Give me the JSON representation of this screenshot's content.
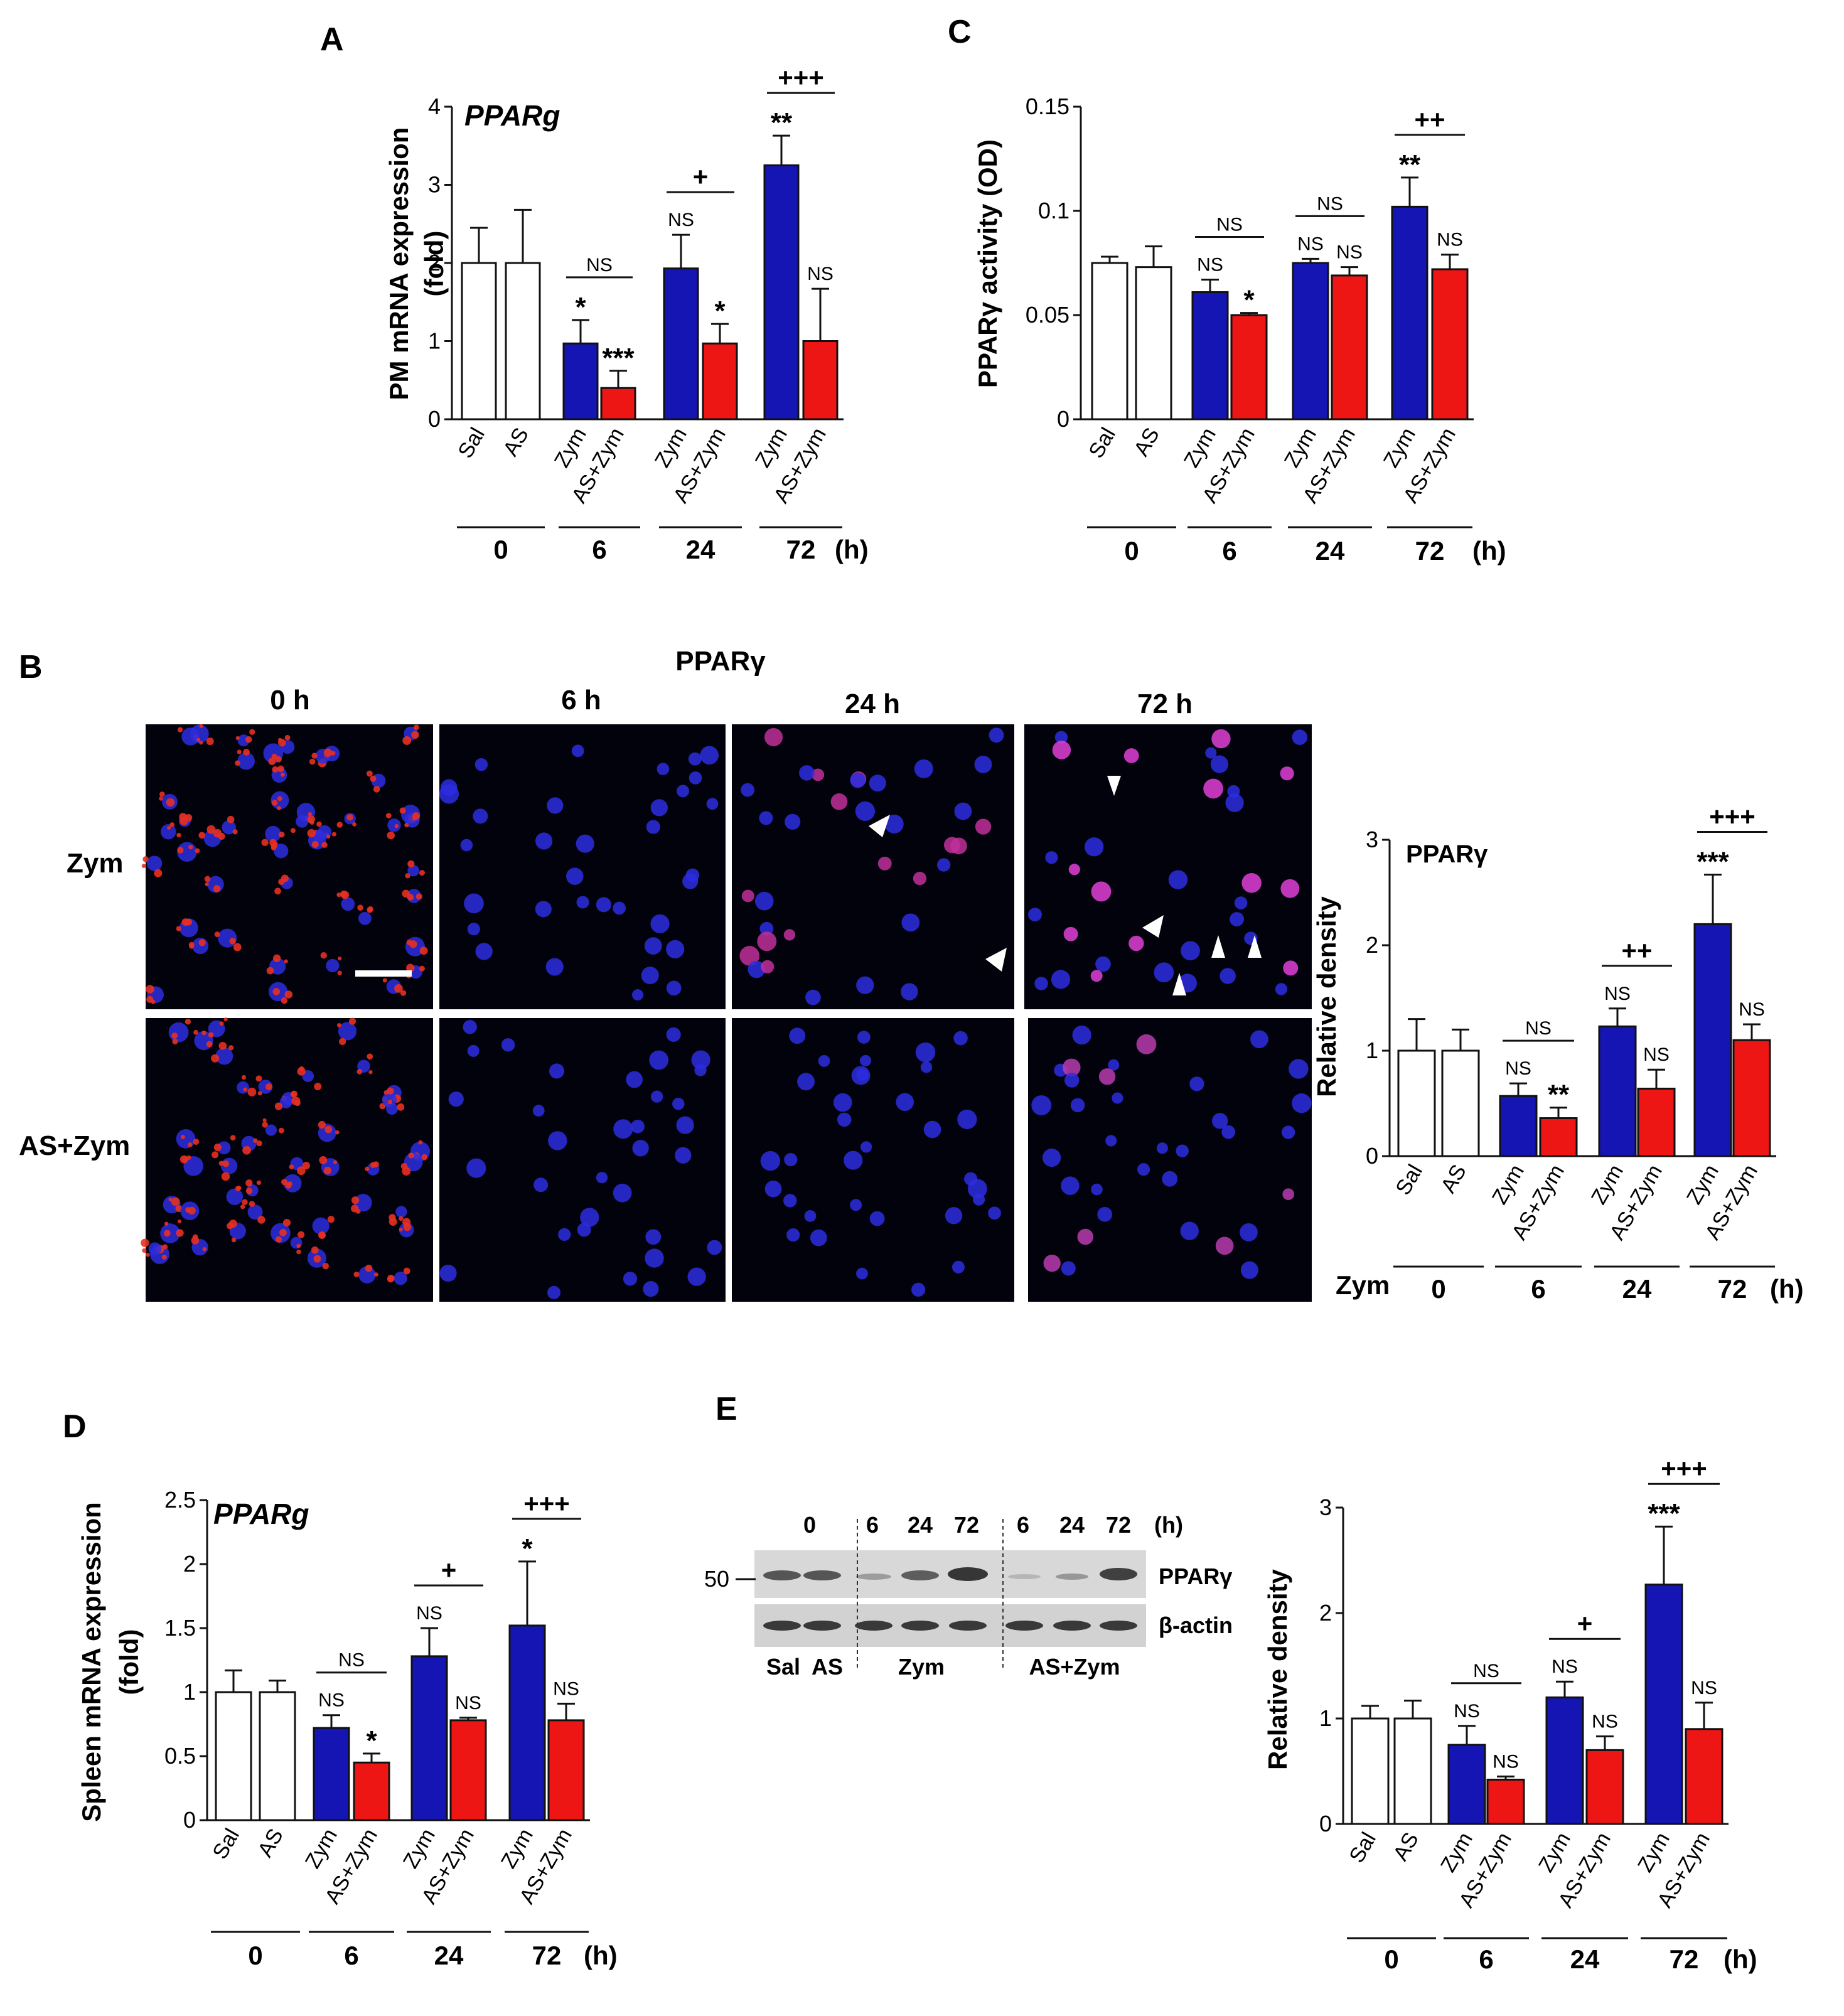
{
  "panels": {
    "A": "A",
    "B": "B",
    "C": "C",
    "D": "D",
    "E": "E"
  },
  "colors": {
    "sal": "#ffffff",
    "zym": "#1515b4",
    "aszym": "#ee1515",
    "line": "#111111"
  },
  "time_unit": "(h)",
  "time_labels": [
    "0",
    "6",
    "24",
    "72"
  ],
  "imaging": {
    "title": "PPARγ",
    "columns": [
      "0 h",
      "6 h",
      "24 h",
      "72 h"
    ],
    "rows": [
      "Zym",
      "AS+Zym"
    ],
    "zym_axis_label": "Zym"
  },
  "western": {
    "lanes_time": [
      "0",
      "6",
      "24",
      "72",
      "6",
      "24",
      "72",
      "(h)"
    ],
    "marker": "50",
    "bands": [
      "PPARγ",
      "β-actin"
    ],
    "groups": [
      "Sal",
      "AS",
      "Zym",
      "AS+Zym"
    ]
  },
  "chart_data": [
    {
      "id": "A",
      "type": "bar",
      "title": "PPARg",
      "ylabel": "PM  mRNA expression",
      "ylabel2": "(fold)",
      "ylim": [
        0,
        4
      ],
      "yticks": [
        "0",
        "1",
        "2",
        "3",
        "4"
      ],
      "categories": [
        "Sal",
        "AS",
        "Zym",
        "AS+Zym",
        "Zym",
        "AS+Zym",
        "Zym",
        "AS+Zym"
      ],
      "values": [
        2.0,
        2.0,
        0.97,
        0.4,
        1.93,
        0.97,
        3.25,
        1.0
      ],
      "errors": [
        0.45,
        0.68,
        0.3,
        0.22,
        0.43,
        0.25,
        0.38,
        0.67
      ],
      "marks": [
        "",
        "",
        "*",
        "***",
        "NS",
        "*",
        "**",
        "NS"
      ],
      "pairs": [
        "NS",
        "+",
        "+++"
      ]
    },
    {
      "id": "C",
      "type": "bar",
      "title": "",
      "ylabel": "PPARγ activity (OD)",
      "ylabel2": "",
      "ylim": [
        0,
        0.15
      ],
      "yticks": [
        "0",
        "0.05",
        "0.1",
        "0.15"
      ],
      "categories": [
        "Sal",
        "AS",
        "Zym",
        "AS+Zym",
        "Zym",
        "AS+Zym",
        "Zym",
        "AS+Zym"
      ],
      "values": [
        0.075,
        0.073,
        0.061,
        0.05,
        0.075,
        0.069,
        0.102,
        0.072
      ],
      "errors": [
        0.003,
        0.01,
        0.006,
        0.001,
        0.002,
        0.004,
        0.014,
        0.007
      ],
      "marks": [
        "",
        "",
        "NS",
        "*",
        "NS",
        "NS",
        "**",
        "NS"
      ],
      "pairs": [
        "NS",
        "NS",
        "++"
      ]
    },
    {
      "id": "B",
      "type": "bar",
      "title": "PPARγ",
      "ylabel": "Relative density",
      "ylabel2": "",
      "ylim": [
        0,
        3
      ],
      "yticks": [
        "0",
        "1",
        "2",
        "3"
      ],
      "categories": [
        "Sal",
        "AS",
        "Zym",
        "AS+Zym",
        "Zym",
        "AS+Zym",
        "Zym",
        "AS+Zym"
      ],
      "values": [
        1.0,
        1.0,
        0.57,
        0.36,
        1.23,
        0.64,
        2.2,
        1.1
      ],
      "errors": [
        0.3,
        0.2,
        0.12,
        0.1,
        0.17,
        0.18,
        0.47,
        0.15
      ],
      "marks": [
        "",
        "",
        "NS",
        "**",
        "NS",
        "NS",
        "***",
        "NS"
      ],
      "pairs": [
        "NS",
        "++",
        "+++"
      ]
    },
    {
      "id": "D",
      "type": "bar",
      "title": "PPARg",
      "ylabel": "Spleen  mRNA expression",
      "ylabel2": "(fold)",
      "ylim": [
        0,
        2.5
      ],
      "yticks": [
        "0",
        "0.5",
        "1",
        "1.5",
        "2",
        "2.5"
      ],
      "categories": [
        "Sal",
        "AS",
        "Zym",
        "AS+Zym",
        "Zym",
        "AS+Zym",
        "Zym",
        "AS+Zym"
      ],
      "values": [
        1.0,
        1.0,
        0.72,
        0.45,
        1.28,
        0.78,
        1.52,
        0.78
      ],
      "errors": [
        0.17,
        0.09,
        0.1,
        0.07,
        0.22,
        0.02,
        0.5,
        0.13
      ],
      "marks": [
        "",
        "",
        "NS",
        "*",
        "NS",
        "NS",
        "*",
        "NS"
      ],
      "pairs": [
        "NS",
        "+",
        "+++"
      ]
    },
    {
      "id": "E",
      "type": "bar",
      "title": "",
      "ylabel": "Relative density",
      "ylabel2": "",
      "ylim": [
        0,
        3
      ],
      "yticks": [
        "0",
        "1",
        "2",
        "3"
      ],
      "categories": [
        "Sal",
        "AS",
        "Zym",
        "AS+Zym",
        "Zym",
        "AS+Zym",
        "Zym",
        "AS+Zym"
      ],
      "values": [
        1.0,
        1.0,
        0.75,
        0.42,
        1.2,
        0.7,
        2.27,
        0.9
      ],
      "errors": [
        0.12,
        0.17,
        0.18,
        0.03,
        0.15,
        0.13,
        0.55,
        0.25
      ],
      "marks": [
        "",
        "",
        "NS",
        "NS",
        "NS",
        "NS",
        "***",
        "NS"
      ],
      "pairs": [
        "NS",
        "+",
        "+++"
      ]
    }
  ]
}
